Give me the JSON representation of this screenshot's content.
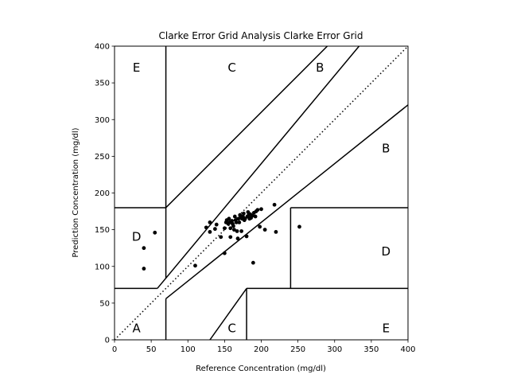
{
  "chart_data": {
    "type": "scatter",
    "title": "Clarke Error Grid Analysis Clarke Error Grid",
    "xlabel": "Reference Concentration (mg/dl)",
    "ylabel": "Prediction Concentration (mg/dl)",
    "xlim": [
      0,
      400
    ],
    "ylim": [
      0,
      400
    ],
    "xticks": [
      0,
      50,
      100,
      150,
      200,
      250,
      300,
      350,
      400
    ],
    "yticks": [
      0,
      50,
      100,
      150,
      200,
      250,
      300,
      350,
      400
    ],
    "grid": false,
    "identity_line": {
      "style": "dotted",
      "from": [
        0,
        0
      ],
      "to": [
        400,
        400
      ]
    },
    "zone_lines": [
      [
        [
          0,
          70
        ],
        [
          58.33,
          70
        ]
      ],
      [
        [
          58.33,
          70
        ],
        [
          400,
          480
        ]
      ],
      [
        [
          70,
          84
        ],
        [
          70,
          400
        ]
      ],
      [
        [
          70,
          56
        ],
        [
          400,
          320
        ]
      ],
      [
        [
          70,
          0
        ],
        [
          70,
          56
        ]
      ],
      [
        [
          0,
          180
        ],
        [
          70,
          180
        ]
      ],
      [
        [
          70,
          180
        ],
        [
          290,
          400
        ]
      ],
      [
        [
          240,
          70
        ],
        [
          240,
          180
        ]
      ],
      [
        [
          240,
          180
        ],
        [
          400,
          180
        ]
      ],
      [
        [
          130,
          0
        ],
        [
          180,
          70
        ]
      ],
      [
        [
          180,
          0
        ],
        [
          180,
          70
        ]
      ],
      [
        [
          180,
          70
        ],
        [
          400,
          70
        ]
      ]
    ],
    "zone_labels": [
      {
        "text": "A",
        "x": 30,
        "y": 15
      },
      {
        "text": "B",
        "x": 370,
        "y": 260
      },
      {
        "text": "B",
        "x": 280,
        "y": 370
      },
      {
        "text": "C",
        "x": 160,
        "y": 370
      },
      {
        "text": "C",
        "x": 160,
        "y": 15
      },
      {
        "text": "D",
        "x": 30,
        "y": 140
      },
      {
        "text": "D",
        "x": 370,
        "y": 120
      },
      {
        "text": "E",
        "x": 30,
        "y": 370
      },
      {
        "text": "E",
        "x": 370,
        "y": 15
      }
    ],
    "points": [
      [
        40,
        125
      ],
      [
        40,
        97
      ],
      [
        55,
        146
      ],
      [
        110,
        101
      ],
      [
        125,
        153
      ],
      [
        130,
        147
      ],
      [
        130,
        160
      ],
      [
        137,
        151
      ],
      [
        139,
        157
      ],
      [
        145,
        140
      ],
      [
        150,
        118
      ],
      [
        150,
        152
      ],
      [
        152,
        160
      ],
      [
        153,
        163
      ],
      [
        155,
        158
      ],
      [
        156,
        165
      ],
      [
        157,
        160
      ],
      [
        158,
        152
      ],
      [
        158,
        140
      ],
      [
        160,
        162
      ],
      [
        161,
        158
      ],
      [
        162,
        155
      ],
      [
        163,
        150
      ],
      [
        164,
        168
      ],
      [
        165,
        163
      ],
      [
        166,
        160
      ],
      [
        167,
        148
      ],
      [
        168,
        138
      ],
      [
        169,
        165
      ],
      [
        170,
        160
      ],
      [
        171,
        170
      ],
      [
        172,
        166
      ],
      [
        173,
        148
      ],
      [
        174,
        165
      ],
      [
        175,
        168
      ],
      [
        176,
        172
      ],
      [
        177,
        163
      ],
      [
        178,
        165
      ],
      [
        180,
        141
      ],
      [
        181,
        168
      ],
      [
        182,
        174
      ],
      [
        183,
        170
      ],
      [
        184,
        165
      ],
      [
        185,
        171
      ],
      [
        186,
        166
      ],
      [
        188,
        169
      ],
      [
        189,
        105
      ],
      [
        190,
        173
      ],
      [
        192,
        168
      ],
      [
        193,
        175
      ],
      [
        195,
        177
      ],
      [
        198,
        154
      ],
      [
        200,
        178
      ],
      [
        205,
        150
      ],
      [
        218,
        184
      ],
      [
        220,
        147
      ],
      [
        252,
        154
      ]
    ]
  }
}
